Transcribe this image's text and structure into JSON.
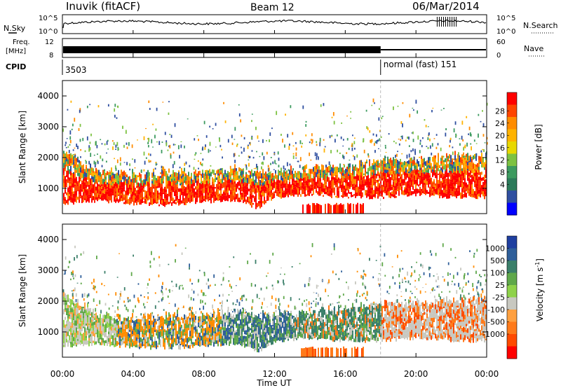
{
  "header": {
    "station": "Inuvik (fitACF)",
    "beam": "Beam 12",
    "date": "06/Mar/2014"
  },
  "noise_panel": {
    "left_label": "N.Sky",
    "right_label": "N.Search",
    "left_ticks": [
      "10^5",
      "10^0"
    ],
    "right_ticks": [
      "10^5",
      "10^0"
    ]
  },
  "freq_panel": {
    "left_label_1": "Freq.",
    "left_label_2": "[MHz]",
    "right_label": "Nave",
    "left_ticks": [
      "12",
      "8"
    ],
    "right_ticks": [
      "60",
      "0"
    ]
  },
  "cpid_panel": {
    "label": "CPID",
    "segments": [
      {
        "start_h": 0,
        "end_h": 18,
        "text": "3503"
      },
      {
        "start_h": 18,
        "end_h": 24,
        "text": "normal (fast) 151"
      }
    ]
  },
  "x_axis": {
    "label": "Time UT",
    "ticks": [
      "00:00",
      "04:00",
      "08:00",
      "12:00",
      "16:00",
      "20:00",
      "00:00"
    ],
    "tick_hours": [
      0,
      4,
      8,
      12,
      16,
      20,
      24
    ]
  },
  "chart_data": [
    {
      "type": "heatmap",
      "title": "Power",
      "ylabel": "Slant Range [km]",
      "xlabel": "Time UT",
      "xlim": [
        0,
        24
      ],
      "ylim": [
        180,
        4500
      ],
      "yticks": [
        1000,
        2000,
        3000,
        4000
      ],
      "colorbar": {
        "label": "Power [dB]",
        "ticks": [
          "28",
          "24",
          "20",
          "16",
          "12",
          "8",
          "4"
        ],
        "colors": [
          "#ff0000",
          "#ff4500",
          "#ff8c00",
          "#ffb300",
          "#e8d800",
          "#7dc242",
          "#3c9a5f",
          "#2c7a5a",
          "#2f4fa0",
          "#0000ff"
        ]
      },
      "series": [
        {
          "kind": "main_band",
          "points": [
            [
              0,
              500,
              2200
            ],
            [
              2,
              600,
              1500
            ],
            [
              4,
              500,
              1400
            ],
            [
              6,
              450,
              1500
            ],
            [
              8,
              550,
              1500
            ],
            [
              10,
              600,
              1600
            ],
            [
              11,
              350,
              1500
            ],
            [
              12,
              700,
              1500
            ],
            [
              14,
              800,
              1600
            ],
            [
              16,
              700,
              1700
            ],
            [
              18,
              700,
              1900
            ],
            [
              20,
              800,
              1900
            ],
            [
              22,
              700,
              2000
            ],
            [
              24,
              700,
              2000
            ]
          ]
        },
        {
          "kind": "patch",
          "points": [
            [
              13.5,
              250,
              450
            ],
            [
              17,
              200,
              550
            ]
          ]
        }
      ]
    },
    {
      "type": "heatmap",
      "title": "Velocity",
      "ylabel": "Slant Range [km]",
      "xlabel": "Time UT",
      "xlim": [
        0,
        24
      ],
      "ylim": [
        180,
        4500
      ],
      "yticks": [
        1000,
        2000,
        3000,
        4000
      ],
      "colorbar": {
        "label": "Velocity [m s^-1]",
        "ticks": [
          "1000",
          "500",
          "100",
          "25",
          "-25",
          "-100",
          "-500",
          "-1000"
        ],
        "colors": [
          "#1f3fa0",
          "#2f5f9a",
          "#3b7f6a",
          "#5fa84a",
          "#8fd24a",
          "#c8c8c0",
          "#ffa040",
          "#ff7a1a",
          "#ff4a00",
          "#ff0000"
        ]
      },
      "series": [
        {
          "kind": "main_band",
          "points": [
            [
              0,
              500,
              2200
            ],
            [
              2,
              600,
              1500
            ],
            [
              4,
              500,
              1400
            ],
            [
              6,
              450,
              1500
            ],
            [
              8,
              550,
              1500
            ],
            [
              10,
              600,
              1600
            ],
            [
              11,
              350,
              1500
            ],
            [
              12,
              700,
              1500
            ],
            [
              14,
              800,
              1600
            ],
            [
              16,
              700,
              1700
            ],
            [
              18,
              700,
              1900
            ],
            [
              20,
              800,
              1900
            ],
            [
              22,
              700,
              2000
            ],
            [
              24,
              700,
              2000
            ]
          ]
        },
        {
          "kind": "patch",
          "points": [
            [
              13.5,
              250,
              450
            ],
            [
              17,
              200,
              550
            ]
          ]
        }
      ]
    }
  ]
}
